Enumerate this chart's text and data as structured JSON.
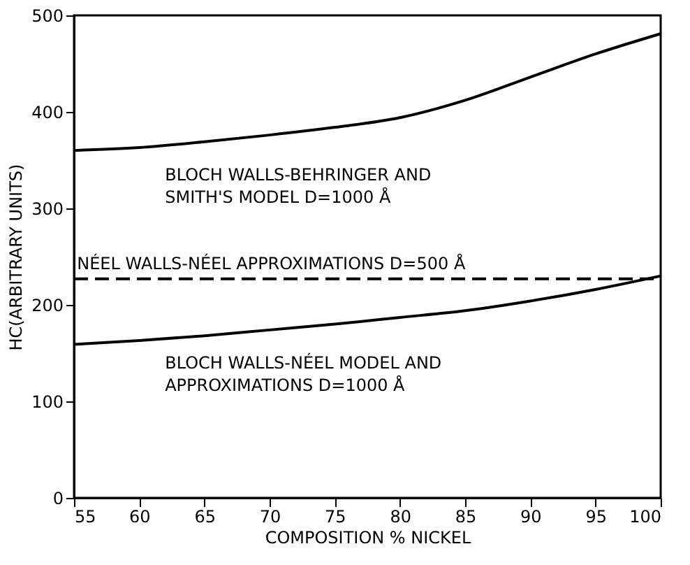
{
  "chart_data": {
    "type": "line",
    "xlabel": "COMPOSITION % NICKEL",
    "ylabel": "HC(ARBITRARY UNITS)",
    "x": [
      55,
      60,
      65,
      70,
      75,
      80,
      85,
      90,
      95,
      100
    ],
    "series": [
      {
        "color": "#000000",
        "line_style": "solid",
        "values": [
          360,
          363,
          369,
          376,
          384,
          394,
          412,
          436,
          460,
          481
        ]
      },
      {
        "color": "#000000",
        "line_style": "dashed",
        "values": [
          227,
          227,
          227,
          227,
          227,
          227,
          227,
          227,
          227,
          227
        ]
      },
      {
        "color": "#000000",
        "line_style": "solid",
        "values": [
          159,
          163,
          168,
          174,
          180,
          187,
          194,
          204,
          216,
          230
        ]
      }
    ],
    "xlim": [
      55,
      100
    ],
    "xticks": [
      55,
      60,
      65,
      70,
      75,
      80,
      85,
      90,
      95,
      100
    ],
    "ylim": [
      0,
      500
    ],
    "yticks": [
      0,
      100,
      200,
      300,
      400,
      500
    ],
    "grid": false,
    "marker": "none",
    "annotations": [
      "BLOCH WALLS-BEHRINGER AND\nSMITH'S MODEL D=1000 Å",
      "NÉEL WALLS-NÉEL APPROXIMATIONS D=500 Å",
      "BLOCH WALLS-NÉEL MODEL AND\nAPPROXIMATIONS D=1000 Å"
    ]
  }
}
